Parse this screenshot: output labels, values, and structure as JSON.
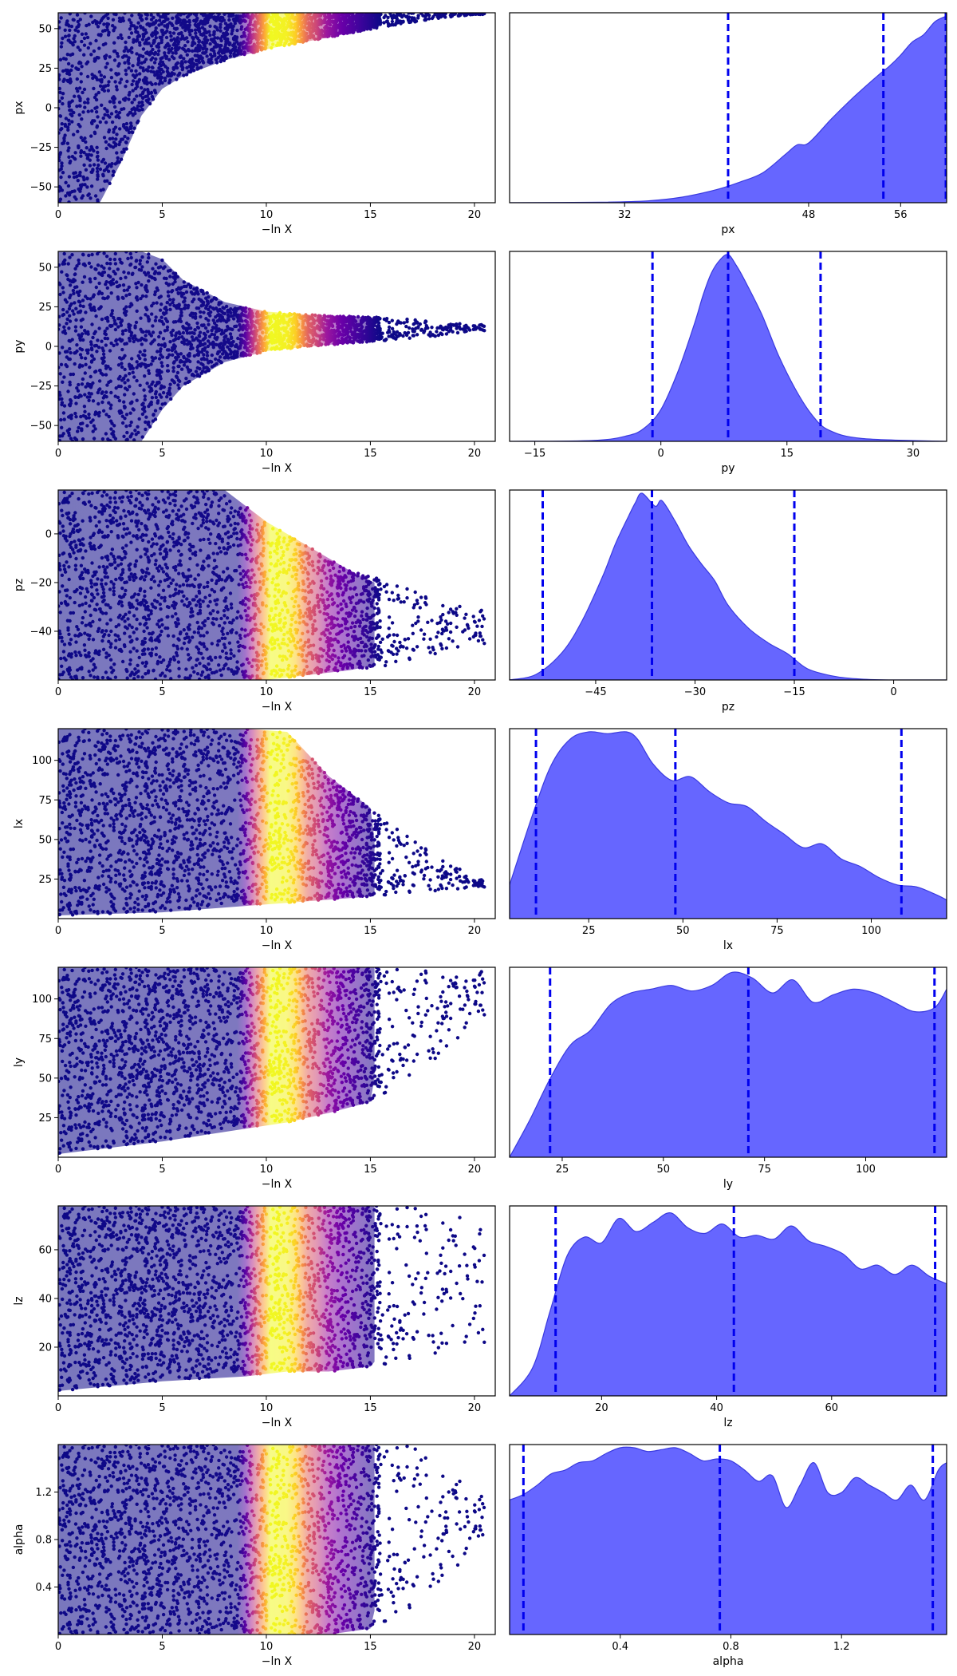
{
  "colors": {
    "kde_fill": "#6666ff",
    "kde_line": "#3a3adf",
    "quantile_line": "#0000ee",
    "scatter_colormap": "plasma",
    "axes_frame": "#000000"
  },
  "chart_data": [
    {
      "type": "scatter",
      "xlabel": "−ln X",
      "ylabel": "px",
      "xlim": [
        0,
        21
      ],
      "ylim": [
        -60,
        60
      ],
      "xticks": [
        0,
        5,
        10,
        15,
        20
      ],
      "yticks": [
        -50,
        -25,
        0,
        25,
        50
      ],
      "color_by": "posterior weight (peak near −ln X ≈ 10.5)",
      "envelope": {
        "x": [
          0,
          1,
          2,
          3,
          4,
          5,
          6,
          8,
          10,
          12,
          14,
          16,
          18,
          20
        ],
        "y_min": [
          -60,
          -60,
          -60,
          -35,
          -5,
          12,
          20,
          30,
          37,
          42,
          47,
          52,
          56,
          59
        ],
        "y_max": [
          60,
          60,
          60,
          60,
          60,
          60,
          60,
          60,
          60,
          60,
          60,
          60,
          60,
          60
        ]
      }
    },
    {
      "type": "area",
      "xlabel": "px",
      "xlim": [
        22,
        60
      ],
      "xticks": [
        32,
        48,
        56
      ],
      "x": [
        22,
        30,
        34,
        37,
        40,
        42,
        44,
        46,
        47,
        48,
        50,
        52,
        54,
        55,
        56,
        57,
        58,
        59,
        60
      ],
      "y": [
        0,
        0.003,
        0.01,
        0.03,
        0.07,
        0.11,
        0.16,
        0.26,
        0.31,
        0.32,
        0.45,
        0.57,
        0.68,
        0.73,
        0.79,
        0.86,
        0.9,
        0.97,
        1.0
      ],
      "quantiles": [
        41,
        54.5,
        60.5
      ]
    },
    {
      "type": "scatter",
      "xlabel": "−ln X",
      "ylabel": "py",
      "xlim": [
        0,
        21
      ],
      "ylim": [
        -60,
        60
      ],
      "xticks": [
        0,
        5,
        10,
        15,
        20
      ],
      "yticks": [
        -50,
        -25,
        0,
        25,
        50
      ],
      "color_by": "posterior weight (peak near −ln X ≈ 10.5)",
      "envelope": {
        "x": [
          0,
          2,
          4,
          5,
          6,
          8,
          10,
          12,
          14,
          16,
          18,
          20
        ],
        "y_min": [
          -60,
          -60,
          -60,
          -40,
          -25,
          -10,
          -3,
          0,
          2,
          4,
          6,
          10
        ],
        "y_max": [
          60,
          60,
          60,
          55,
          42,
          28,
          22,
          20,
          19,
          18,
          16,
          14
        ]
      }
    },
    {
      "type": "area",
      "xlabel": "py",
      "xlim": [
        -18,
        34
      ],
      "xticks": [
        -15,
        0,
        15,
        30
      ],
      "x": [
        -18,
        -8,
        -4,
        -2,
        0,
        2,
        4,
        5,
        6,
        7,
        8,
        9,
        10,
        12,
        14,
        16,
        18,
        20,
        24,
        34
      ],
      "y": [
        0,
        0.005,
        0.03,
        0.07,
        0.17,
        0.37,
        0.63,
        0.78,
        0.9,
        0.97,
        1.0,
        0.94,
        0.86,
        0.68,
        0.46,
        0.28,
        0.14,
        0.06,
        0.015,
        0
      ],
      "quantiles": [
        -1,
        8,
        19
      ]
    },
    {
      "type": "scatter",
      "xlabel": "−ln X",
      "ylabel": "pz",
      "xlim": [
        0,
        21
      ],
      "ylim": [
        -60,
        18
      ],
      "xticks": [
        0,
        5,
        10,
        15,
        20
      ],
      "yticks": [
        -40,
        -20,
        0
      ],
      "color_by": "posterior weight (peak near −ln X ≈ 10.5)",
      "envelope": {
        "x": [
          0,
          5,
          8,
          10,
          12,
          14,
          16,
          18,
          20
        ],
        "y_min": [
          -60,
          -60,
          -60,
          -60,
          -58,
          -56,
          -54,
          -50,
          -45
        ],
        "y_max": [
          18,
          18,
          18,
          5,
          -5,
          -15,
          -20,
          -26,
          -30
        ]
      }
    },
    {
      "type": "area",
      "xlabel": "pz",
      "xlim": [
        -58,
        8
      ],
      "xticks": [
        -45,
        -30,
        -15,
        0
      ],
      "x": [
        -58,
        -54,
        -50,
        -47,
        -44,
        -42,
        -40,
        -39,
        -38,
        -36,
        -35,
        -33,
        -31,
        -29,
        -27,
        -25,
        -22,
        -19,
        -16,
        -13,
        -9,
        -5,
        0,
        8
      ],
      "y": [
        0,
        0.03,
        0.15,
        0.32,
        0.55,
        0.73,
        0.88,
        0.95,
        1.0,
        0.93,
        0.96,
        0.85,
        0.72,
        0.62,
        0.53,
        0.4,
        0.28,
        0.2,
        0.14,
        0.06,
        0.02,
        0.005,
        0,
        0
      ],
      "quantiles": [
        -53,
        -36.5,
        -15
      ]
    },
    {
      "type": "scatter",
      "xlabel": "−ln X",
      "ylabel": "lx",
      "xlim": [
        0,
        21
      ],
      "ylim": [
        0,
        120
      ],
      "xticks": [
        0,
        5,
        10,
        15,
        20
      ],
      "yticks": [
        25,
        50,
        75,
        100
      ],
      "color_by": "posterior weight (peak near −ln X ≈ 10.5)",
      "envelope": {
        "x": [
          0,
          5,
          9,
          11,
          13,
          15,
          17,
          19,
          20
        ],
        "y_min": [
          2,
          4,
          8,
          10,
          12,
          14,
          16,
          18,
          20
        ],
        "y_max": [
          120,
          120,
          120,
          118,
          90,
          70,
          50,
          35,
          25
        ]
      }
    },
    {
      "type": "area",
      "xlabel": "lx",
      "xlim": [
        4,
        120
      ],
      "xticks": [
        25,
        50,
        75,
        100
      ],
      "x": [
        4,
        10,
        15,
        20,
        25,
        30,
        35,
        38,
        42,
        47,
        52,
        57,
        62,
        67,
        72,
        77,
        82,
        87,
        92,
        97,
        102,
        107,
        112,
        117,
        120
      ],
      "y": [
        0.18,
        0.55,
        0.82,
        0.96,
        1.0,
        0.99,
        1.0,
        0.96,
        0.83,
        0.74,
        0.76,
        0.68,
        0.62,
        0.6,
        0.52,
        0.45,
        0.38,
        0.4,
        0.32,
        0.28,
        0.22,
        0.18,
        0.17,
        0.13,
        0.1
      ],
      "quantiles": [
        11,
        48,
        108
      ]
    },
    {
      "type": "scatter",
      "xlabel": "−ln X",
      "ylabel": "ly",
      "xlim": [
        0,
        21
      ],
      "ylim": [
        0,
        120
      ],
      "xticks": [
        0,
        5,
        10,
        15,
        20
      ],
      "yticks": [
        25,
        50,
        75,
        100
      ],
      "color_by": "posterior weight (peak near −ln X ≈ 10.5)",
      "envelope": {
        "x": [
          0,
          5,
          9,
          11,
          13,
          15,
          17,
          19,
          20
        ],
        "y_min": [
          2,
          10,
          18,
          22,
          28,
          35,
          50,
          70,
          90
        ],
        "y_max": [
          120,
          120,
          120,
          120,
          120,
          120,
          120,
          120,
          120
        ]
      }
    },
    {
      "type": "area",
      "xlabel": "ly",
      "xlim": [
        12,
        120
      ],
      "xticks": [
        25,
        50,
        75,
        100
      ],
      "x": [
        12,
        17,
        22,
        27,
        32,
        37,
        42,
        47,
        52,
        57,
        62,
        67,
        72,
        77,
        82,
        87,
        92,
        97,
        102,
        107,
        112,
        117,
        120
      ],
      "y": [
        0,
        0.2,
        0.42,
        0.6,
        0.68,
        0.82,
        0.88,
        0.9,
        0.92,
        0.89,
        0.92,
        0.99,
        0.96,
        0.88,
        0.95,
        0.83,
        0.87,
        0.9,
        0.88,
        0.83,
        0.78,
        0.8,
        0.9
      ],
      "quantiles": [
        22,
        71,
        117
      ]
    },
    {
      "type": "scatter",
      "xlabel": "−ln X",
      "ylabel": "lz",
      "xlim": [
        0,
        21
      ],
      "ylim": [
        0,
        78
      ],
      "xticks": [
        0,
        5,
        10,
        15,
        20
      ],
      "yticks": [
        20,
        40,
        60
      ],
      "color_by": "posterior weight (peak near −ln X ≈ 10.5)",
      "envelope": {
        "x": [
          0,
          5,
          9,
          11,
          13,
          15,
          17,
          19,
          20
        ],
        "y_min": [
          2,
          6,
          8,
          10,
          10,
          12,
          14,
          18,
          22
        ],
        "y_max": [
          78,
          78,
          78,
          78,
          78,
          78,
          78,
          78,
          75
        ]
      }
    },
    {
      "type": "area",
      "xlabel": "lz",
      "xlim": [
        4,
        80
      ],
      "xticks": [
        20,
        40,
        60
      ],
      "x": [
        4,
        8,
        11,
        14,
        17,
        20,
        23,
        26,
        29,
        32,
        35,
        38,
        41,
        44,
        47,
        50,
        53,
        56,
        59,
        62,
        65,
        68,
        71,
        74,
        77,
        80
      ],
      "y": [
        0,
        0.15,
        0.45,
        0.75,
        0.85,
        0.82,
        0.95,
        0.88,
        0.93,
        0.98,
        0.9,
        0.87,
        0.92,
        0.85,
        0.86,
        0.84,
        0.91,
        0.83,
        0.8,
        0.76,
        0.68,
        0.7,
        0.65,
        0.7,
        0.64,
        0.6
      ],
      "quantiles": [
        12,
        43,
        78
      ]
    },
    {
      "type": "scatter",
      "xlabel": "−ln X",
      "ylabel": "alpha",
      "xlim": [
        0,
        21
      ],
      "ylim": [
        0,
        1.6
      ],
      "xticks": [
        0,
        5,
        10,
        15,
        20
      ],
      "yticks": [
        0.4,
        0.8,
        1.2
      ],
      "color_by": "posterior weight (peak near −ln X ≈ 10.5)",
      "envelope": {
        "x": [
          0,
          5,
          9,
          11,
          13,
          15,
          17,
          19,
          20
        ],
        "y_min": [
          0,
          0,
          0,
          0,
          0,
          0.05,
          0.2,
          0.5,
          0.8
        ],
        "y_max": [
          1.6,
          1.6,
          1.6,
          1.6,
          1.6,
          1.6,
          1.6,
          1.4,
          1.2
        ]
      }
    },
    {
      "type": "area",
      "xlabel": "alpha",
      "xlim": [
        0,
        1.58
      ],
      "xticks": [
        0.4,
        0.8,
        1.2
      ],
      "x": [
        0,
        0.05,
        0.1,
        0.15,
        0.2,
        0.25,
        0.3,
        0.35,
        0.4,
        0.45,
        0.5,
        0.55,
        0.6,
        0.65,
        0.7,
        0.75,
        0.8,
        0.85,
        0.9,
        0.95,
        1.0,
        1.05,
        1.1,
        1.15,
        1.2,
        1.25,
        1.3,
        1.35,
        1.4,
        1.45,
        1.5,
        1.55,
        1.58
      ],
      "y": [
        0.72,
        0.75,
        0.8,
        0.86,
        0.88,
        0.92,
        0.93,
        0.97,
        1.0,
        1.0,
        0.98,
        0.99,
        1.0,
        0.97,
        0.93,
        0.94,
        0.93,
        0.88,
        0.82,
        0.85,
        0.68,
        0.8,
        0.92,
        0.76,
        0.76,
        0.84,
        0.8,
        0.76,
        0.72,
        0.8,
        0.72,
        0.88,
        0.92
      ],
      "quantiles": [
        0.05,
        0.76,
        1.53
      ]
    }
  ]
}
